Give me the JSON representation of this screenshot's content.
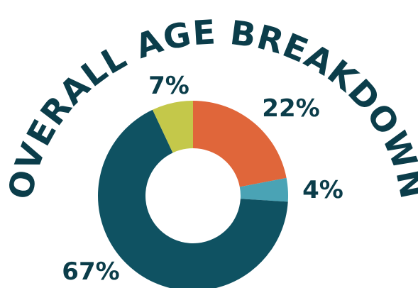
{
  "chart_data": {
    "type": "pie",
    "donut": true,
    "title": "OVERALL AGE BREAKDOWN",
    "slices": [
      {
        "value": 22,
        "label": "22%",
        "color": "#e0663a"
      },
      {
        "value": 4,
        "label": "4%",
        "color": "#4aa3b5"
      },
      {
        "value": 67,
        "label": "67%",
        "color": "#0f5262"
      },
      {
        "value": 7,
        "label": "7%",
        "color": "#c4c84a"
      }
    ],
    "legend": "none"
  }
}
